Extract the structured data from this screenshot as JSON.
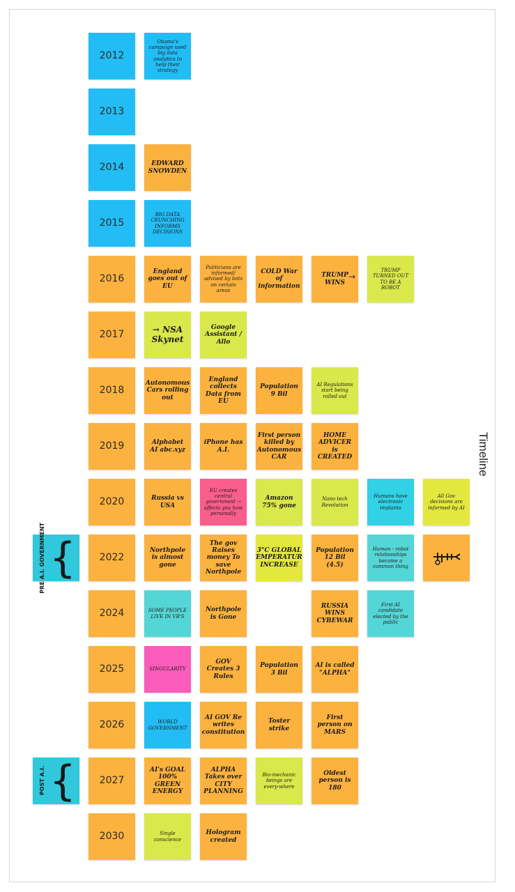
{
  "board": {
    "label": "Timeline"
  },
  "side_labels": {
    "pre_ai": "PRE A.I. GOVERNMENT",
    "post_ai": "POST A.I."
  },
  "years": {
    "y2012": "2012",
    "y2013": "2013",
    "y2014": "2014",
    "y2015": "2015",
    "y2016": "2016",
    "y2017": "2017",
    "y2018": "2018",
    "y2019": "2019",
    "y2020": "2020",
    "y2022": "2022",
    "y2024": "2024",
    "y2025": "2025",
    "y2026": "2026",
    "y2027": "2027",
    "y2030": "2030"
  },
  "notes": {
    "n2012_1": "Obama's campaign used big data analytics to help their strategy",
    "n2014_1": "EDWARD SNOWDEN",
    "n2015_1": "BIG DATA CRUNCHING INFORMS DECISIONS",
    "n2016_1": "England goes out of EU",
    "n2016_2": "Politicians are informed/ advised by bots on certain areas",
    "n2016_3": "COLD War of information",
    "n2016_4": "TRUMP WINS",
    "n2016_5": "TRUMP TURNED OUT TO BE A ROBOT",
    "n2017_1": "→ NSA Skynet",
    "n2017_2": "Google Assistant / Allo",
    "n2018_1": "Autonomous Cars rolling out",
    "n2018_2": "England collects Data from EU",
    "n2018_3": "Population 9 Bil",
    "n2018_4": "AI Regulations start being rolled out",
    "n2019_1": "Alphabet AI abc.xyz",
    "n2019_2": "iPhone has A.I.",
    "n2019_3": "First person killed by Autonomous CAR",
    "n2019_4": "HOME ADVICER is CREATED",
    "n2020_1": "Russia vs USA",
    "n2020_2": "EU creates central government → affects you how personally",
    "n2020_3": "Amazon 75% gone",
    "n2020_4": "Nano tech Revolution",
    "n2020_5": "Humans have electronic implants",
    "n2020_6": "All Gov decisions are informed by AI",
    "n2022_1": "Northpole is almost gone",
    "n2022_2": "The gov Raises money To save Northpole",
    "n2022_3": "3°C GLOBAL TEMPERATURE INCREASE",
    "n2022_4": "Population 12 Bil (4.5)",
    "n2022_5": "Human - robot relationships become a common thing",
    "n2024_1": "SOME PEOPLE LIVE IN VR'S",
    "n2024_2": "Northpole is Gone",
    "n2024_3": "RUSSIA WINS CYBEWAR",
    "n2024_4": "First AI candidate elected by the public",
    "n2025_1": "SINGULARITY",
    "n2025_2": "GOV Creates 3 Rules",
    "n2025_3": "Population 3 Bil",
    "n2025_4": "AI is called \"ALPHA\"",
    "n2026_1": "WORLD GOVERNMENT",
    "n2026_2": "AI GOV Re writes constitution",
    "n2026_3": "Toster strike",
    "n2026_4": "First person on MARS",
    "n2027_1": "AI's GOAL 100% GREEN ENERGY",
    "n2027_2": "ALPHA Takes over CITY PLANNING",
    "n2027_3": "Bio-mechanic beings are every-where",
    "n2027_4": "Oldest person is 180",
    "n2030_1": "Single conscience",
    "n2030_2": "Hologram created"
  },
  "icons": {
    "arrow": "→",
    "machine": "machine-sketch-icon"
  }
}
